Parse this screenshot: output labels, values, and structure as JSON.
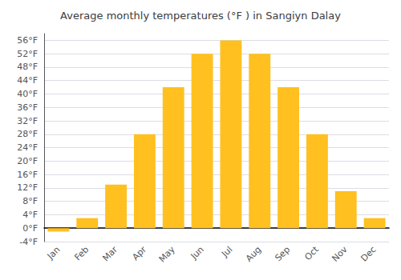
{
  "chart_data": {
    "type": "bar",
    "title": "Average monthly temperatures (°F ) in Sangiyn Dalay",
    "categories": [
      "Jan",
      "Feb",
      "Mar",
      "Apr",
      "May",
      "Jun",
      "Jul",
      "Aug",
      "Sep",
      "Oct",
      "Nov",
      "Dec"
    ],
    "values": [
      -1,
      3,
      13,
      28,
      42,
      52,
      56,
      52,
      42,
      28,
      11,
      3
    ],
    "color": "#FFC020",
    "ylim": [
      -4,
      58
    ],
    "yticks": [
      {
        "value": -4,
        "label": "-4°F"
      },
      {
        "value": 0,
        "label": "0°F"
      },
      {
        "value": 4,
        "label": "4°F"
      },
      {
        "value": 8,
        "label": "8°F"
      },
      {
        "value": 12,
        "label": "12°F"
      },
      {
        "value": 16,
        "label": "16°F"
      },
      {
        "value": 20,
        "label": "20°F"
      },
      {
        "value": 24,
        "label": "24°F"
      },
      {
        "value": 28,
        "label": "28°F"
      },
      {
        "value": 32,
        "label": "32°F"
      },
      {
        "value": 36,
        "label": "36°F"
      },
      {
        "value": 40,
        "label": "40°F"
      },
      {
        "value": 44,
        "label": "44°F"
      },
      {
        "value": 48,
        "label": "48°F"
      },
      {
        "value": 52,
        "label": "52°F"
      },
      {
        "value": 56,
        "label": "56°F"
      }
    ],
    "grid": true
  }
}
